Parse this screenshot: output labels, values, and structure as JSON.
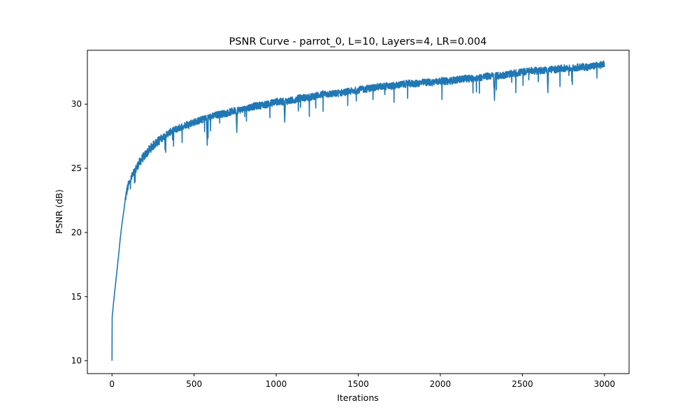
{
  "chart_data": {
    "type": "line",
    "title": "PSNR Curve - parrot_0, L=10, Layers=4, LR=0.004",
    "xlabel": "Iterations",
    "ylabel": "PSNR (dB)",
    "xlim": [
      -150,
      3150
    ],
    "ylim": [
      9,
      34.2
    ],
    "xticks": [
      0,
      500,
      1000,
      1500,
      2000,
      2500,
      3000
    ],
    "yticks": [
      10,
      15,
      20,
      25,
      30
    ],
    "grid": false,
    "line_color": "#1f77b4",
    "series": [
      {
        "x": [
          0,
          1,
          2,
          5,
          10,
          20,
          30,
          40,
          50,
          60,
          70,
          80,
          90,
          100,
          120,
          140,
          160,
          180,
          200,
          230,
          260,
          300,
          350,
          400,
          450,
          500,
          550,
          600,
          650,
          700,
          750,
          800,
          850,
          900,
          950,
          1000,
          1050,
          1100,
          1150,
          1200,
          1250,
          1300,
          1350,
          1400,
          1450,
          1500,
          1550,
          1600,
          1650,
          1700,
          1750,
          1800,
          1850,
          1900,
          1950,
          2000,
          2050,
          2100,
          2150,
          2200,
          2250,
          2300,
          2350,
          2400,
          2450,
          2500,
          2550,
          2600,
          2650,
          2700,
          2750,
          2800,
          2850,
          2900,
          2950,
          3000
        ],
        "y": [
          10.0,
          13.3,
          13.6,
          13.9,
          14.6,
          15.8,
          17.0,
          18.2,
          19.5,
          20.6,
          21.5,
          22.5,
          23.2,
          23.7,
          24.3,
          24.8,
          25.3,
          25.7,
          26.0,
          26.5,
          26.9,
          27.3,
          27.8,
          28.1,
          28.4,
          28.6,
          28.8,
          29.0,
          29.2,
          29.3,
          29.5,
          29.6,
          29.8,
          29.9,
          30.0,
          30.2,
          30.2,
          30.3,
          30.5,
          30.5,
          30.7,
          30.8,
          30.8,
          30.9,
          31.0,
          31.1,
          31.2,
          31.3,
          31.4,
          31.4,
          31.5,
          31.6,
          31.6,
          31.7,
          31.7,
          31.8,
          31.8,
          31.9,
          32.0,
          32.0,
          32.1,
          32.2,
          32.2,
          32.3,
          32.4,
          32.5,
          32.6,
          32.6,
          32.7,
          32.7,
          32.8,
          32.8,
          32.9,
          32.9,
          33.0,
          33.1
        ]
      }
    ],
    "annotations": [
      {
        "x": 1052,
        "y": 28.6
      },
      {
        "x": 580,
        "y": 26.8
      },
      {
        "x": 2655,
        "y": 30.9
      },
      {
        "x": 2330,
        "y": 30.3
      },
      {
        "x": 760,
        "y": 27.8
      }
    ]
  }
}
